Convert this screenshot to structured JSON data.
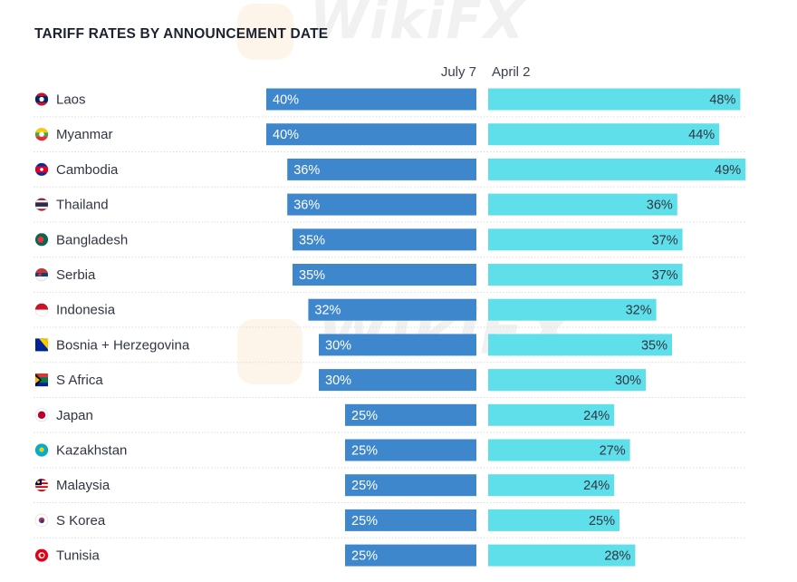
{
  "chart_data": {
    "type": "bar",
    "title": "TARIFF RATES BY ANNOUNCEMENT DATE",
    "categories": [
      "Laos",
      "Myanmar",
      "Cambodia",
      "Thailand",
      "Bangladesh",
      "Serbia",
      "Indonesia",
      "Bosnia + Herzegovina",
      "S Africa",
      "Japan",
      "Kazakhstan",
      "Malaysia",
      "S Korea",
      "Tunisia"
    ],
    "series": [
      {
        "name": "July 7",
        "values": [
          40,
          40,
          36,
          36,
          35,
          35,
          32,
          30,
          30,
          25,
          25,
          25,
          25,
          25
        ],
        "labels": [
          "40%",
          "40%",
          "36%",
          "36%",
          "35%",
          "35%",
          "32%",
          "30%",
          "30%",
          "25%",
          "25%",
          "25%",
          "25%",
          "25%"
        ],
        "color": "#3f87cd"
      },
      {
        "name": "April 2",
        "values": [
          48,
          44,
          49,
          36,
          37,
          37,
          32,
          35,
          30,
          24,
          27,
          24,
          25,
          28
        ],
        "labels": [
          "48%",
          "44%",
          "49%",
          "36%",
          "37%",
          "37%",
          "32%",
          "35%",
          "30%",
          "24%",
          "27%",
          "24%",
          "25%",
          "28%"
        ],
        "color": "#5fdfea"
      }
    ],
    "unit": "%",
    "layout": "butterfly"
  },
  "flags": {
    "Laos": "laos-flag-icon",
    "Myanmar": "myanmar-flag-icon",
    "Cambodia": "cambodia-flag-icon",
    "Thailand": "thailand-flag-icon",
    "Bangladesh": "bangladesh-flag-icon",
    "Serbia": "serbia-flag-icon",
    "Indonesia": "indonesia-flag-icon",
    "Bosnia + Herzegovina": "bosnia-flag-icon",
    "S Africa": "south-africa-flag-icon",
    "Japan": "japan-flag-icon",
    "Kazakhstan": "kazakhstan-flag-icon",
    "Malaysia": "malaysia-flag-icon",
    "S Korea": "south-korea-flag-icon",
    "Tunisia": "tunisia-flag-icon"
  },
  "watermark": "WikiFX",
  "colors": {
    "left_bar": "#3f87cd",
    "right_bar": "#5fdfea",
    "divider": "#d9dce2"
  }
}
